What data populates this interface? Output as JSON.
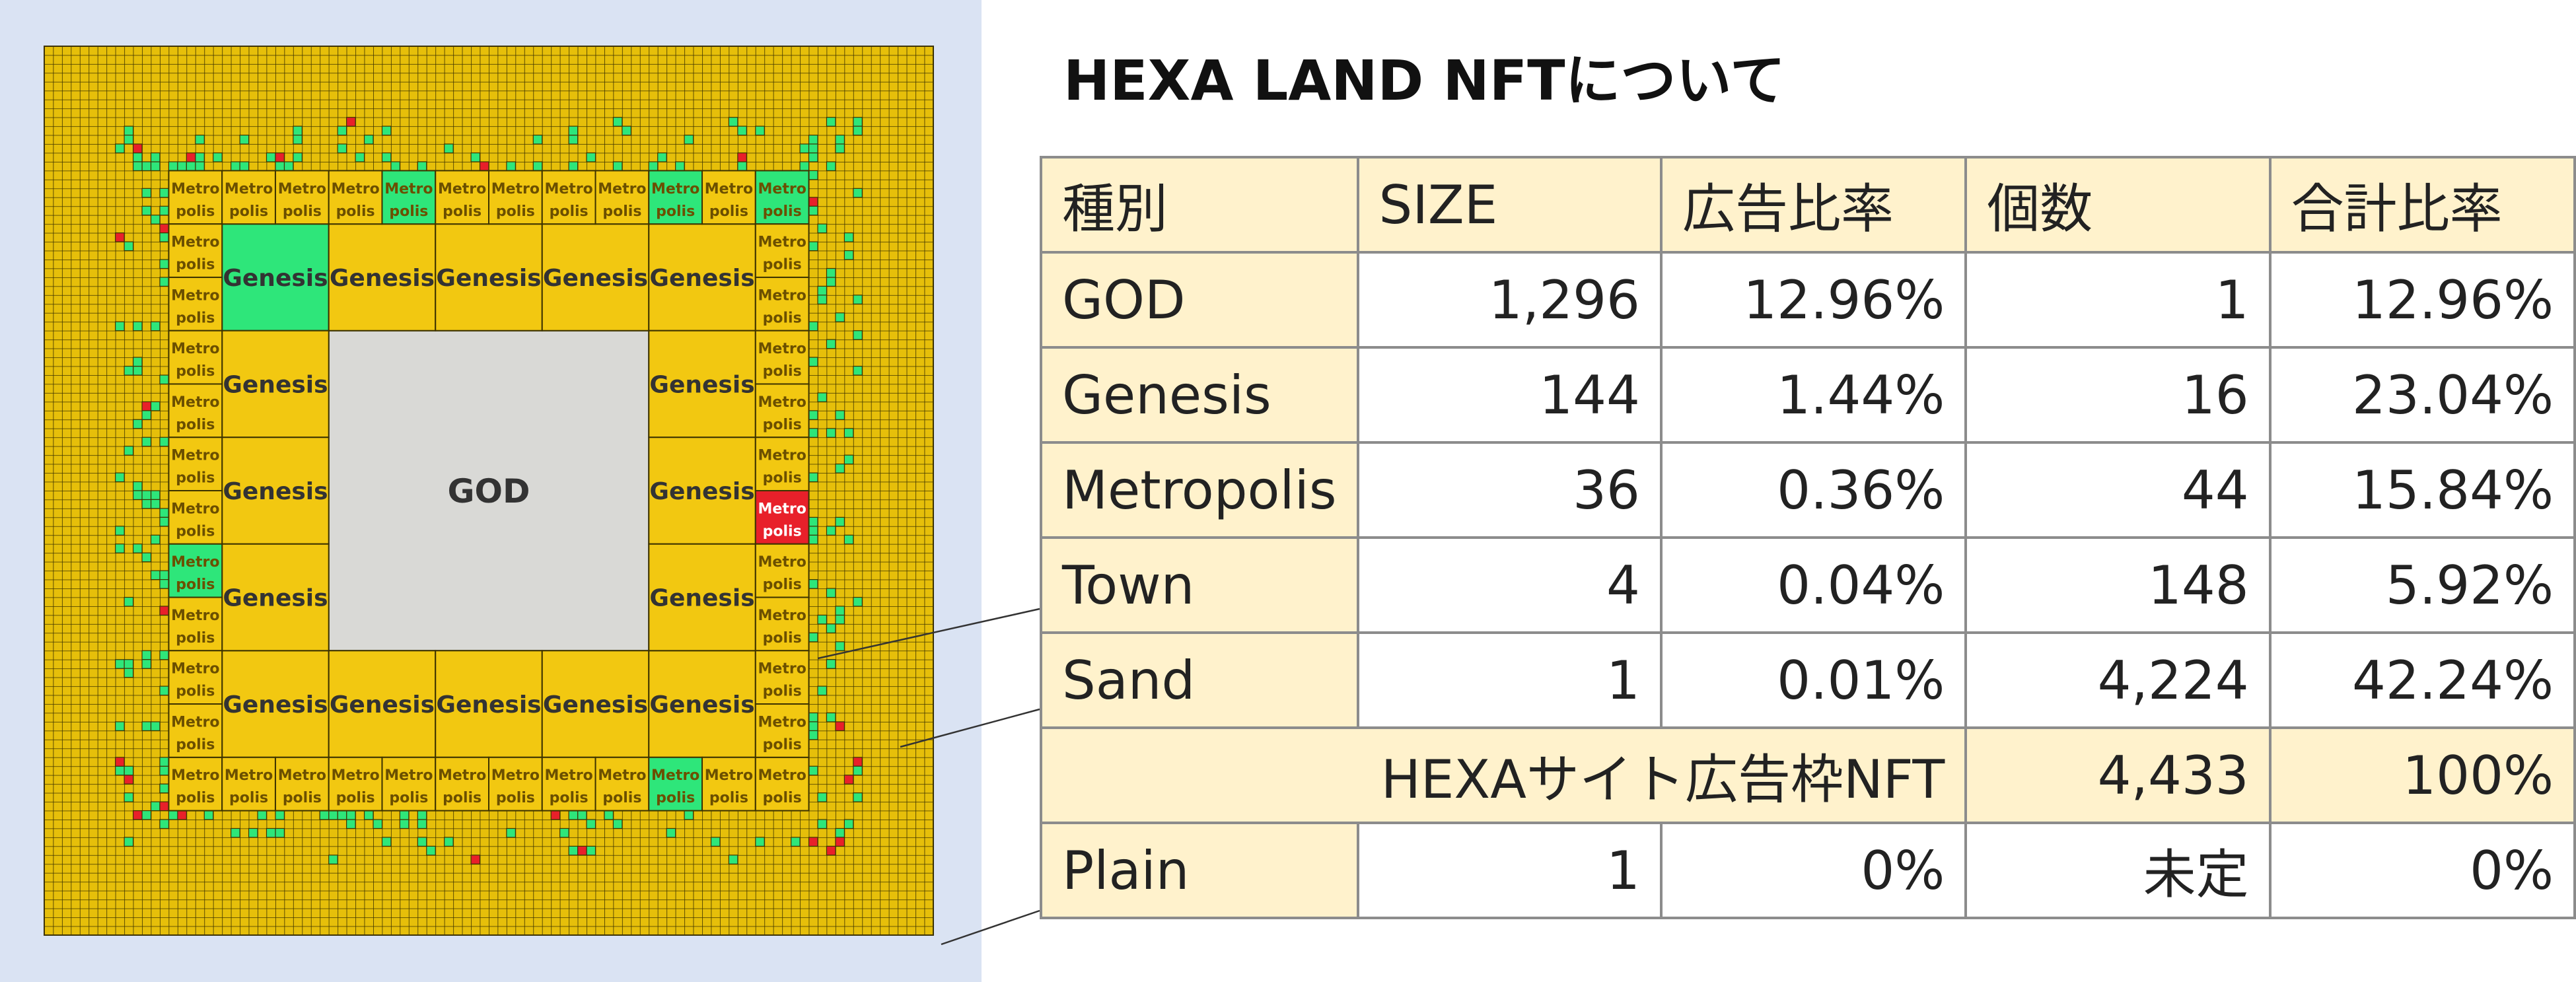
{
  "title": "HEXA LAND NFTについて",
  "table": {
    "header": [
      "種別",
      "SIZE",
      "広告比率",
      "個数",
      "合計比率"
    ],
    "rows": [
      [
        "GOD",
        "1,296",
        "12.96%",
        "1",
        "12.96%"
      ],
      [
        "Genesis",
        "144",
        "1.44%",
        "16",
        "23.04%"
      ],
      [
        "Metropolis",
        "36",
        "0.36%",
        "44",
        "15.84%"
      ],
      [
        "Town",
        "4",
        "0.04%",
        "148",
        "5.92%"
      ],
      [
        "Sand",
        "1",
        "0.01%",
        "4,224",
        "42.24%"
      ]
    ],
    "total": {
      "label": "HEXAサイト広告枠NFT",
      "count": "4,433",
      "ratio": "100%"
    },
    "plain": [
      "Plain",
      "1",
      "0%",
      "未定",
      "0%"
    ]
  },
  "map": {
    "god": "GOD",
    "genesis": [
      {
        "label": "Genesis",
        "color": "#2ee67a"
      },
      {
        "label": "Genesis",
        "color": "#f2c811"
      },
      {
        "label": "Genesis",
        "color": "#f2c811"
      },
      {
        "label": "Genesis",
        "color": "#f2c811"
      },
      {
        "label": "Genesis",
        "color": "#f2c811"
      },
      {
        "label": "Genesis",
        "color": "#f2c811"
      },
      {
        "label": "Genesis",
        "color": "#f2c811"
      },
      {
        "label": "Genesis",
        "color": "#f2c811"
      },
      {
        "label": "Genesis",
        "color": "#f2c811"
      },
      {
        "label": "Genesis",
        "color": "#f2c811"
      },
      {
        "label": "Genesis",
        "color": "#f2c811"
      },
      {
        "label": "Genesis",
        "color": "#f2c811"
      },
      {
        "label": "Genesis",
        "color": "#f2c811"
      },
      {
        "label": "Genesis",
        "color": "#f2c811"
      },
      {
        "label": "Genesis",
        "color": "#f2c811"
      },
      {
        "label": "Genesis",
        "color": "#f2c811"
      }
    ],
    "metropolis": [
      {
        "label": [
          "Metro",
          "polis"
        ],
        "color": "#f2c811"
      },
      {
        "label": [
          "Metro",
          "polis"
        ],
        "color": "#f2c811"
      },
      {
        "label": [
          "Metro",
          "polis"
        ],
        "color": "#f2c811"
      },
      {
        "label": [
          "Metro",
          "polis"
        ],
        "color": "#f2c811"
      },
      {
        "label": [
          "Metro",
          "polis"
        ],
        "color": "#2ee67a"
      },
      {
        "label": [
          "Metro",
          "polis"
        ],
        "color": "#f2c811"
      },
      {
        "label": [
          "Metro",
          "polis"
        ],
        "color": "#f2c811"
      },
      {
        "label": [
          "Metro",
          "polis"
        ],
        "color": "#f2c811"
      },
      {
        "label": [
          "Metro",
          "polis"
        ],
        "color": "#f2c811"
      },
      {
        "label": [
          "Metro",
          "polis"
        ],
        "color": "#2ee67a"
      },
      {
        "label": [
          "Metro",
          "polis"
        ],
        "color": "#f2c811"
      },
      {
        "label": [
          "Metro",
          "polis"
        ],
        "color": "#2ee67a"
      },
      {
        "label": [
          "Metro",
          "polis"
        ],
        "color": "#f2c811"
      },
      {
        "label": [
          "Metro",
          "polis"
        ],
        "color": "#f2c811"
      },
      {
        "label": [
          "Metro",
          "polis"
        ],
        "color": "#f2c811"
      },
      {
        "label": [
          "Metro",
          "polis"
        ],
        "color": "#f2c811"
      },
      {
        "label": [
          "Metro",
          "polis"
        ],
        "color": "#f2c811"
      },
      {
        "label": [
          "Metro",
          "polis"
        ],
        "color": "#f2c811"
      },
      {
        "label": [
          "Metro",
          "polis"
        ],
        "color": "#f2c811"
      },
      {
        "label": [
          "Metro",
          "polis"
        ],
        "color": "#f2c811"
      },
      {
        "label": [
          "Metro",
          "polis"
        ],
        "color": "#f2c811"
      },
      {
        "label": [
          "Metro",
          "polis"
        ],
        "color": "#2ee67a"
      },
      {
        "label": [
          "Metro",
          "polis"
        ],
        "color": "#f2c811"
      },
      {
        "label": [
          "Metro",
          "polis"
        ],
        "color": "#f2c811"
      },
      {
        "label": [
          "Metro",
          "polis"
        ],
        "color": "#f2c811"
      },
      {
        "label": [
          "Metro",
          "polis"
        ],
        "color": "#f2c811"
      },
      {
        "label": [
          "Metro",
          "polis"
        ],
        "color": "#f2c811"
      },
      {
        "label": [
          "Metro",
          "polis"
        ],
        "color": "#f2c811"
      },
      {
        "label": [
          "Metro",
          "polis"
        ],
        "color": "#f2c811"
      },
      {
        "label": [
          "Metro",
          "polis"
        ],
        "color": "#f2c811"
      },
      {
        "label": [
          "Metro",
          "polis"
        ],
        "color": "#2ee67a"
      },
      {
        "label": [
          "Metro",
          "polis"
        ],
        "color": "#f2c811"
      },
      {
        "label": [
          "Metro",
          "polis"
        ],
        "color": "#f2c811"
      },
      {
        "label": [
          "Metro",
          "polis"
        ],
        "color": "#f2c811"
      },
      {
        "label": [
          "Metro",
          "polis"
        ],
        "color": "#f2c811"
      },
      {
        "label": [
          "Metro",
          "polis"
        ],
        "color": "#f2c811"
      },
      {
        "label": [
          "Metro",
          "polis"
        ],
        "color": "#f2c811"
      },
      {
        "label": [
          "Metro",
          "polis"
        ],
        "color": "#f2c811"
      },
      {
        "label": [
          "Metro",
          "polis"
        ],
        "color": "#f2c811"
      },
      {
        "label": [
          "Metro",
          "polis"
        ],
        "color": "#e8202a"
      },
      {
        "label": [
          "Metro",
          "polis"
        ],
        "color": "#f2c811"
      },
      {
        "label": [
          "Metro",
          "polis"
        ],
        "color": "#f2c811"
      },
      {
        "label": [
          "Metro",
          "polis"
        ],
        "color": "#f2c811"
      },
      {
        "label": [
          "Metro",
          "polis"
        ],
        "color": "#f2c811"
      }
    ]
  }
}
